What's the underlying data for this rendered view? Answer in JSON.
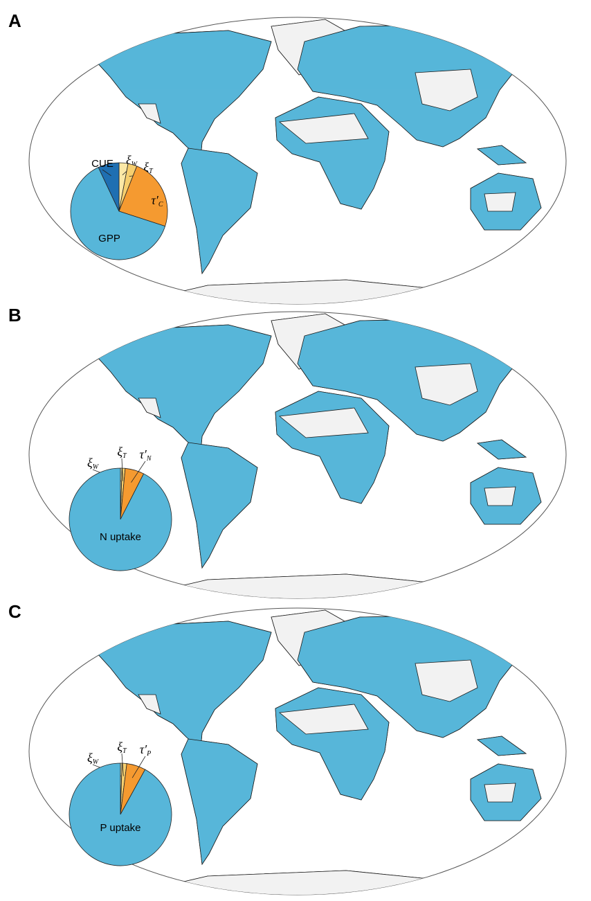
{
  "chart_data": [
    {
      "type": "pie",
      "panel": "A",
      "categories": [
        {
          "text": "ξ",
          "sub": "W"
        },
        {
          "text": "ξ",
          "sub": "T"
        },
        {
          "text": "τ′",
          "sub": "C"
        },
        {
          "text": "GPP"
        },
        {
          "text": "CUE"
        }
      ],
      "values": [
        3,
        3,
        24,
        63,
        7
      ],
      "colors": [
        "#fbe8a6",
        "#f6cf6f",
        "#f59a30",
        "#57b6d9",
        "#1f6fb2"
      ]
    },
    {
      "type": "pie",
      "panel": "B",
      "categories": [
        {
          "text": "ξ",
          "sub": "W"
        },
        {
          "text": "ξ",
          "sub": "T"
        },
        {
          "text": "τ′",
          "sub": "N"
        },
        {
          "text": "N uptake"
        }
      ],
      "values": [
        0.5,
        1,
        6,
        92.5
      ],
      "colors": [
        "#fbe8a6",
        "#f6cf6f",
        "#f59a30",
        "#57b6d9"
      ]
    },
    {
      "type": "pie",
      "panel": "C",
      "categories": [
        {
          "text": "ξ",
          "sub": "W"
        },
        {
          "text": "ξ",
          "sub": "T"
        },
        {
          "text": "τ′",
          "sub": "P"
        },
        {
          "text": "P uptake"
        }
      ],
      "values": [
        0.5,
        1.5,
        6,
        92
      ],
      "colors": [
        "#fbe8a6",
        "#f6cf6f",
        "#f59a30",
        "#57b6d9"
      ]
    }
  ]
}
